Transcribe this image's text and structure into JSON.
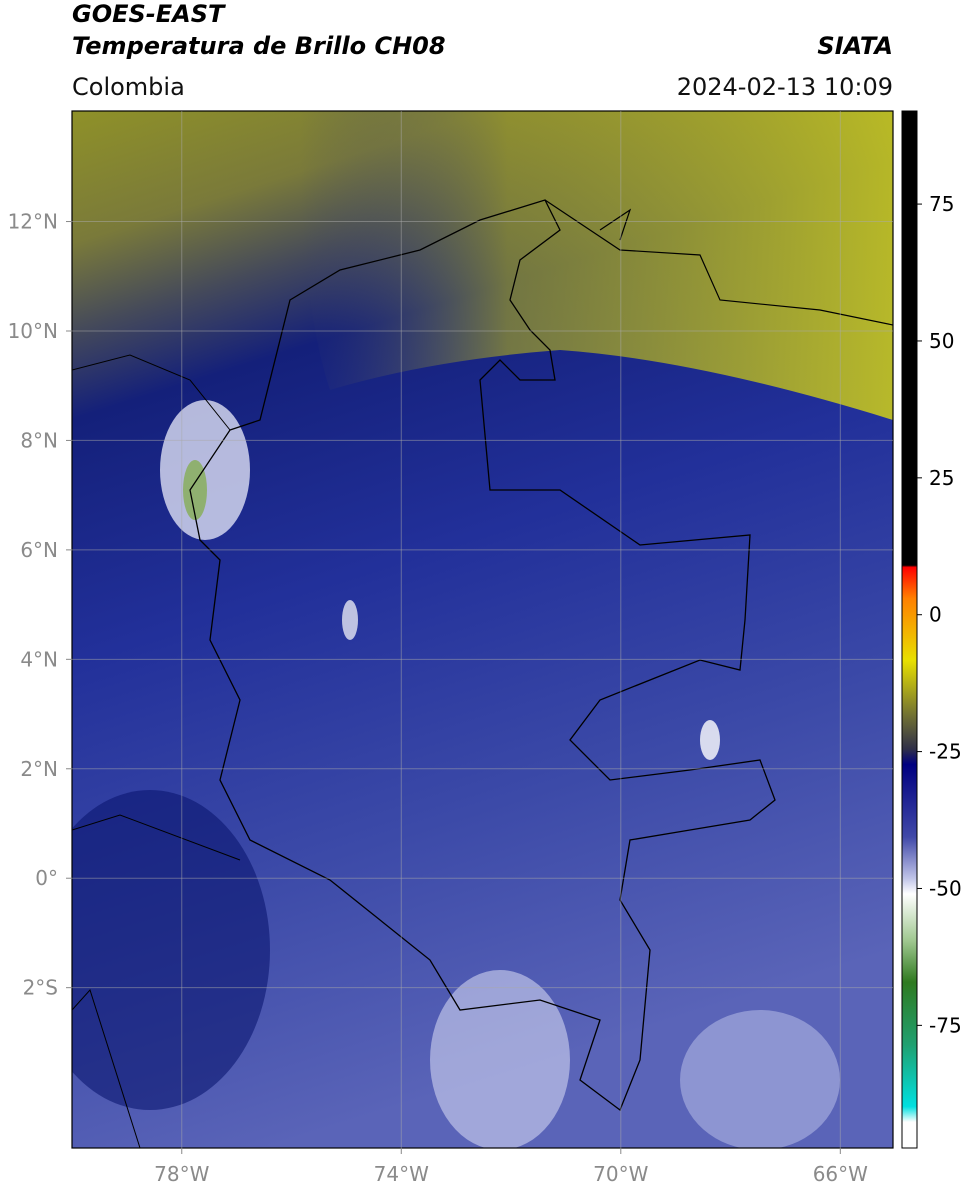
{
  "header": {
    "title": "GOES-EAST",
    "subtitle": "Temperatura de Brillo CH08",
    "region": "Colombia",
    "source": "SIATA",
    "datetime": "2024-02-13 10:09"
  },
  "map": {
    "lonlim": [
      -80,
      -65.04
    ],
    "latlim": [
      -4.93,
      14.02
    ],
    "lon_ticks": [
      {
        "value": -78,
        "label": "78°W"
      },
      {
        "value": -74,
        "label": "74°W"
      },
      {
        "value": -70,
        "label": "70°W"
      },
      {
        "value": -66,
        "label": "66°W"
      }
    ],
    "lat_ticks": [
      {
        "value": 12,
        "label": "12°N"
      },
      {
        "value": 10,
        "label": "10°N"
      },
      {
        "value": 8,
        "label": "8°N"
      },
      {
        "value": 6,
        "label": "6°N"
      },
      {
        "value": 4,
        "label": "4°N"
      },
      {
        "value": 2,
        "label": "2°N"
      },
      {
        "value": 0,
        "label": "0°"
      },
      {
        "value": -2,
        "label": "2°S"
      }
    ]
  },
  "colorbar": {
    "lim": [
      -97.4,
      92
    ],
    "ticks": [
      75,
      50,
      25,
      0,
      -25,
      -50,
      -75
    ]
  }
}
